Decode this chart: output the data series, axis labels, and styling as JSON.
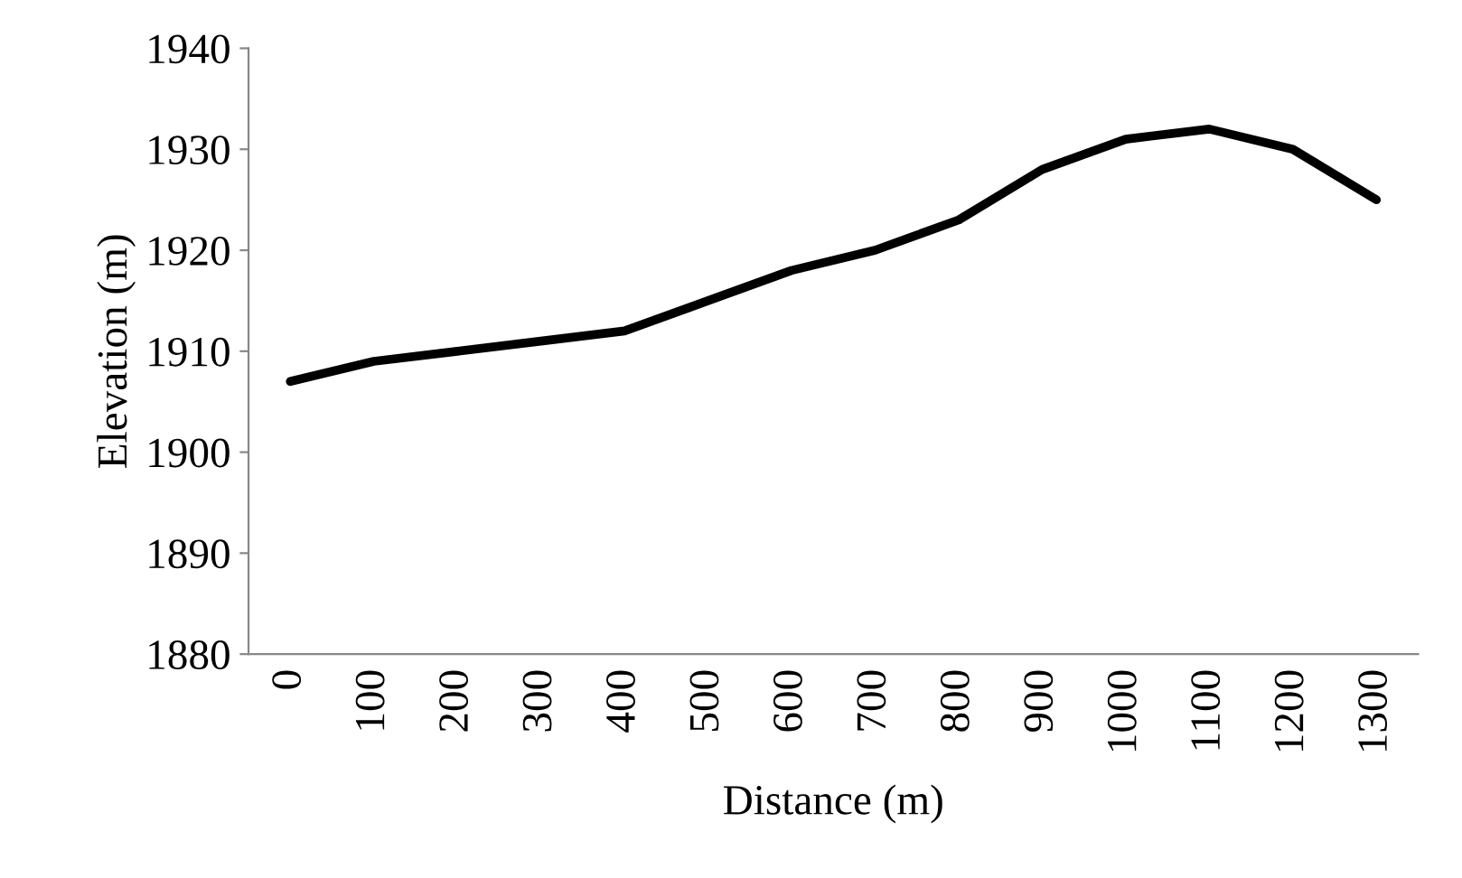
{
  "chart_data": {
    "type": "line",
    "xlabel": "Distance (m)",
    "ylabel": "Elevation (m)",
    "categories": [
      "0",
      "100",
      "200",
      "300",
      "400",
      "500",
      "600",
      "700",
      "800",
      "900",
      "1000",
      "1100",
      "1200",
      "1300"
    ],
    "series": [
      {
        "color": "#000000",
        "values": [
          1907,
          1909,
          1910,
          1911,
          1912,
          1915,
          1918,
          1920,
          1923,
          1928,
          1931,
          1932,
          1930,
          1925
        ]
      }
    ],
    "ylim": [
      1880,
      1940
    ],
    "yticks": [
      1880,
      1890,
      1900,
      1910,
      1920,
      1930,
      1940
    ],
    "grid": false,
    "legend": false,
    "marker": "none",
    "line_style": "solid"
  }
}
